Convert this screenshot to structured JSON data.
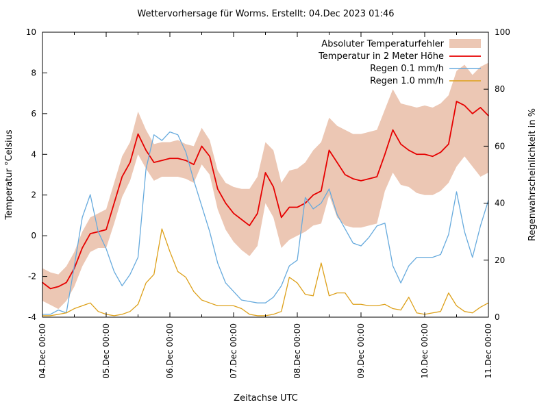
{
  "title": "Wettervorhersage für Worms. Erstellt: 04.Dec 2023 01:46",
  "axes": {
    "x_title": "Zeitachse UTC",
    "y_left_title": "Temperatur °Celsius",
    "y_right_title": "Regenwahrscheinlichkeit in %"
  },
  "legend": {
    "items": [
      {
        "label": "Absoluter Temperaturfehler",
        "swatch": "band",
        "color": "#ecc7b4"
      },
      {
        "label": "Temperatur in 2 Meter Höhe",
        "swatch": "line",
        "color": "#e60000"
      },
      {
        "label": "Regen 0.1 mm/h",
        "swatch": "line",
        "color": "#66aadd"
      },
      {
        "label": "Regen 1.0 mm/h",
        "swatch": "line",
        "color": "#dda019"
      }
    ]
  },
  "colors": {
    "background": "#ffffff",
    "border": "#000000",
    "band": "#ecc7b4",
    "temperature": "#e60000",
    "rain01": "#66aadd",
    "rain10": "#dda019"
  },
  "chart_data": {
    "type": "line",
    "title": "Wettervorhersage für Worms. Erstellt: 04.Dec 2023 01:46",
    "xlabel": "Zeitachse UTC",
    "x_hours_step": 3,
    "x_range_hours": [
      0,
      168
    ],
    "x_tick_labels": [
      "04.Dec 00:00",
      "05.Dec 00:00",
      "06.Dec 00:00",
      "07.Dec 00:00",
      "08.Dec 00:00",
      "09.Dec 00:00",
      "10.Dec 00:00",
      "11.Dec 00:00"
    ],
    "x_minor_tick_hours": [
      12,
      36,
      60,
      84,
      108,
      132,
      156
    ],
    "y_left": {
      "label": "Temperatur °Celsius",
      "range": [
        -4,
        10
      ],
      "ticks": [
        -4,
        -2,
        0,
        2,
        4,
        6,
        8,
        10
      ]
    },
    "y_right": {
      "label": "Regenwahrscheinlichkeit in %",
      "range": [
        0,
        100
      ],
      "ticks": [
        0,
        20,
        40,
        60,
        80,
        100
      ]
    },
    "grid": false,
    "legend_position": "top-right-inside",
    "series": [
      {
        "name": "Absoluter Temperaturfehler",
        "type": "band",
        "axis": "left",
        "color": "#ecc7b4",
        "upper": [
          -1.6,
          -1.8,
          -1.9,
          -1.5,
          -0.8,
          0.2,
          0.9,
          1.1,
          1.3,
          2.6,
          3.9,
          4.6,
          6.1,
          5.2,
          4.5,
          4.6,
          4.6,
          4.7,
          4.5,
          4.4,
          5.3,
          4.7,
          3.2,
          2.6,
          2.4,
          2.3,
          2.3,
          2.9,
          4.6,
          4.2,
          2.6,
          3.2,
          3.3,
          3.6,
          4.2,
          4.6,
          5.8,
          5.4,
          5.2,
          5.0,
          5.0,
          5.1,
          5.2,
          6.2,
          7.2,
          6.5,
          6.4,
          6.3,
          6.4,
          6.3,
          6.5,
          6.9,
          8.1,
          8.4,
          7.9,
          8.3,
          8.5
        ],
        "lower": [
          -3.2,
          -3.4,
          -3.6,
          -3.2,
          -2.5,
          -1.5,
          -0.8,
          -0.6,
          -0.6,
          0.6,
          1.9,
          2.7,
          4.0,
          3.3,
          2.7,
          2.9,
          2.9,
          2.9,
          2.8,
          2.6,
          3.5,
          3.0,
          1.3,
          0.3,
          -0.3,
          -0.7,
          -1.0,
          -0.5,
          1.6,
          0.9,
          -0.6,
          -0.2,
          0.0,
          0.2,
          0.5,
          0.6,
          2.0,
          0.9,
          0.5,
          0.4,
          0.4,
          0.5,
          0.6,
          2.2,
          3.1,
          2.5,
          2.4,
          2.1,
          2.0,
          2.0,
          2.2,
          2.6,
          3.4,
          3.9,
          3.4,
          2.9,
          3.1
        ]
      },
      {
        "name": "Temperatur in 2 Meter Höhe",
        "type": "line",
        "axis": "left",
        "color": "#e60000",
        "width": 1.8,
        "values": [
          -2.3,
          -2.6,
          -2.5,
          -2.3,
          -1.6,
          -0.6,
          0.1,
          0.2,
          0.3,
          1.6,
          2.9,
          3.6,
          5.0,
          4.2,
          3.6,
          3.7,
          3.8,
          3.8,
          3.7,
          3.5,
          4.4,
          3.9,
          2.3,
          1.6,
          1.1,
          0.8,
          0.5,
          1.1,
          3.1,
          2.4,
          0.9,
          1.4,
          1.4,
          1.6,
          2.0,
          2.2,
          4.2,
          3.6,
          3.0,
          2.8,
          2.7,
          2.8,
          2.9,
          4.0,
          5.2,
          4.5,
          4.2,
          4.0,
          4.0,
          3.9,
          4.1,
          4.5,
          6.6,
          6.4,
          6.0,
          6.3,
          5.9
        ]
      },
      {
        "name": "Regen 0.1 mm/h",
        "type": "line",
        "axis": "right",
        "color": "#66aadd",
        "width": 1.3,
        "values": [
          1,
          1,
          2.5,
          1.5,
          18,
          35,
          43,
          30,
          24,
          16,
          11,
          15,
          21,
          52,
          64,
          62,
          65,
          64,
          58,
          48,
          39,
          30,
          19,
          12,
          9,
          6,
          5.5,
          5,
          5,
          7,
          11,
          18,
          20,
          42,
          38,
          40,
          45,
          36,
          31,
          26,
          25,
          28,
          32,
          33,
          18,
          12,
          18,
          21,
          21,
          21,
          22,
          29,
          44,
          30,
          21,
          32,
          41
        ]
      },
      {
        "name": "Regen 1.0 mm/h",
        "type": "line",
        "axis": "right",
        "color": "#dda019",
        "width": 1.3,
        "values": [
          0.5,
          0.5,
          1,
          1.5,
          3,
          4,
          5,
          2,
          1,
          0.5,
          1,
          2,
          4.5,
          12,
          15,
          31,
          23,
          16,
          14,
          9,
          6,
          5,
          4,
          4,
          4,
          3,
          1,
          0.5,
          0.5,
          1,
          2,
          14,
          12,
          8,
          7.5,
          19,
          7.5,
          8.5,
          8.5,
          4.5,
          4.5,
          4,
          4,
          4.5,
          3,
          2.5,
          7,
          1.5,
          1,
          1.5,
          2,
          8.5,
          4,
          2,
          1.5,
          3.5,
          5
        ]
      }
    ]
  }
}
